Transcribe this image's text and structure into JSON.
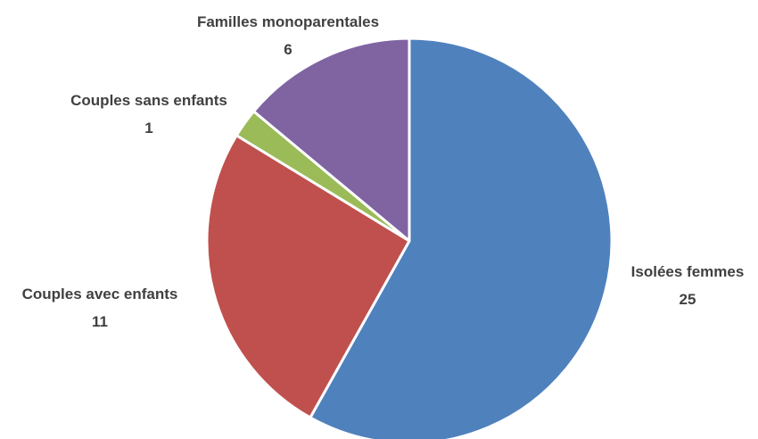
{
  "chart_data": {
    "type": "pie",
    "title": "",
    "start_angle_deg": 0,
    "direction": "clockwise",
    "slices": [
      {
        "label": "Isolées femmes",
        "value": 25,
        "color": "#4F81BD"
      },
      {
        "label": "Couples avec enfants",
        "value": 11,
        "color": "#C0504D"
      },
      {
        "label": "Couples sans enfants",
        "value": 1,
        "color": "#9BBB59"
      },
      {
        "label": "Familles monoparentales",
        "value": 6,
        "color": "#8064A2"
      }
    ],
    "data_labels": {
      "show_category": true,
      "show_value": true,
      "position": "outside"
    },
    "legend": "none"
  }
}
